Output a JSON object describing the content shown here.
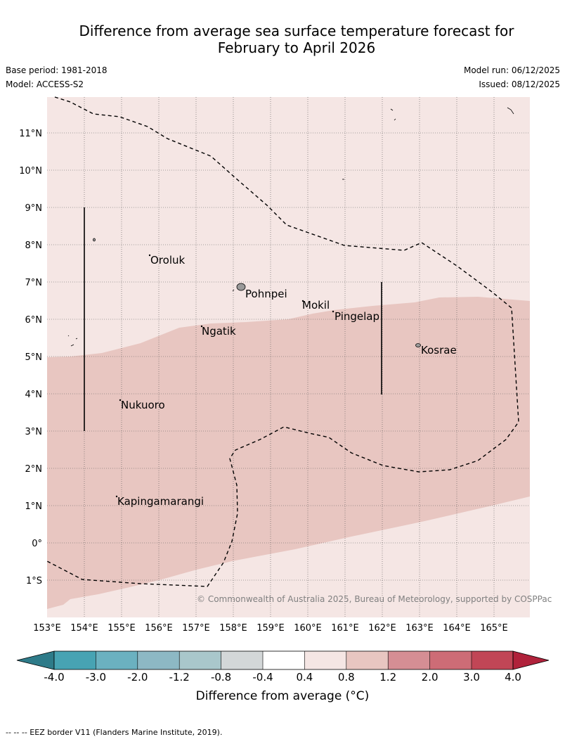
{
  "title_line1": "Difference from average sea surface temperature forecast for",
  "title_line2": "February to April 2026",
  "base_period": "Base period: 1981-2018",
  "model": "Model: ACCESS-S2",
  "model_run": "Model run: 06/12/2025",
  "issued": "Issued: 08/12/2025",
  "copyright": "© Commonwealth of Australia 2025, Bureau of Meteorology, supported by COSPPac",
  "footnote": "-- -- -- EEZ border V11 (Flanders Marine Institute, 2019).",
  "map": {
    "lon_range": [
      153,
      166
    ],
    "lat_range": [
      -2,
      12
    ],
    "lon_ticks": [
      "153°E",
      "154°E",
      "155°E",
      "156°E",
      "157°E",
      "158°E",
      "159°E",
      "160°E",
      "161°E",
      "162°E",
      "163°E",
      "164°E",
      "165°E"
    ],
    "lat_ticks": [
      "11°N",
      "10°N",
      "9°N",
      "8°N",
      "7°N",
      "6°N",
      "5°N",
      "4°N",
      "3°N",
      "2°N",
      "1°N",
      "0°",
      "1°S"
    ],
    "places": [
      {
        "name": "Oroluk"
      },
      {
        "name": "Pohnpei"
      },
      {
        "name": "Mokil"
      },
      {
        "name": "Pingelap"
      },
      {
        "name": "Ngatik"
      },
      {
        "name": "Kosrae"
      },
      {
        "name": "Nukuoro"
      },
      {
        "name": "Kapingamarangi"
      }
    ],
    "fill_colors": {
      "low": "#f5e6e4",
      "mid": "#e8c6c1"
    }
  },
  "colorbar": {
    "title": "Difference from average (°C)",
    "ticks": [
      "-4.0",
      "-3.0",
      "-2.0",
      "-1.2",
      "-0.8",
      "-0.4",
      "0.4",
      "0.8",
      "1.2",
      "2.0",
      "3.0",
      "4.0"
    ],
    "colors": [
      "#2e7b89",
      "#47a3b3",
      "#6bb1c0",
      "#8db8c4",
      "#a9c7cb",
      "#d3d7d8",
      "#ffffff",
      "#f5e6e4",
      "#e8c6c1",
      "#d58e94",
      "#cd6c76",
      "#c14656",
      "#b0223b"
    ]
  }
}
